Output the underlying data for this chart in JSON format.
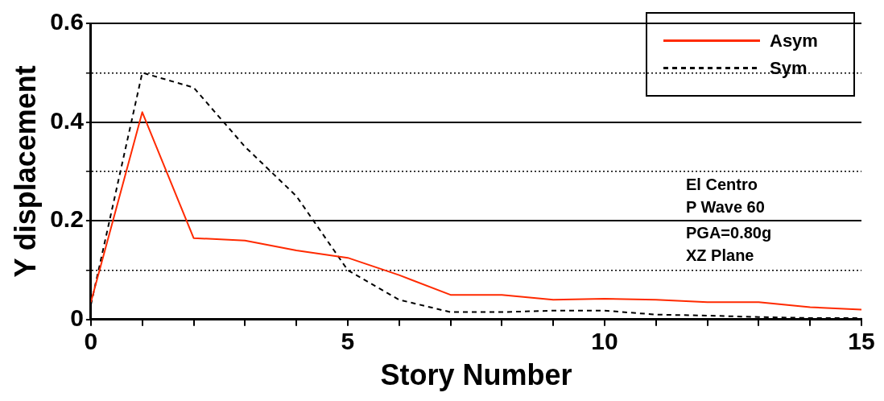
{
  "chart_data": {
    "type": "line",
    "xlabel": "Story Number",
    "ylabel": "Y displacement",
    "x": [
      0,
      1,
      2,
      3,
      4,
      5,
      6,
      7,
      8,
      9,
      10,
      11,
      12,
      13,
      14,
      15
    ],
    "series": [
      {
        "name": "Asym",
        "color": "#ff2a00",
        "line_style": "solid",
        "values": [
          0.035,
          0.42,
          0.165,
          0.16,
          0.14,
          0.125,
          0.09,
          0.05,
          0.05,
          0.04,
          0.042,
          0.04,
          0.035,
          0.035,
          0.025,
          0.02
        ]
      },
      {
        "name": "Sym",
        "color": "#000000",
        "line_style": "dashed",
        "values": [
          0.03,
          0.5,
          0.47,
          0.35,
          0.25,
          0.1,
          0.04,
          0.015,
          0.015,
          0.018,
          0.018,
          0.01,
          0.008,
          0.005,
          0.003,
          0.003
        ]
      }
    ],
    "xlim": [
      0,
      15
    ],
    "ylim": [
      0,
      0.6
    ],
    "xticks": [
      0,
      {
        "value": 1,
        "label": null
      },
      {
        "value": 2,
        "label": null
      },
      {
        "value": 3,
        "label": null
      },
      {
        "value": 4,
        "label": null
      },
      5,
      {
        "value": 6,
        "label": null
      },
      {
        "value": 7,
        "label": null
      },
      {
        "value": 8,
        "label": null
      },
      {
        "value": 9,
        "label": null
      },
      10,
      {
        "value": 11,
        "label": null
      },
      {
        "value": 12,
        "label": null
      },
      {
        "value": 13,
        "label": null
      },
      {
        "value": 14,
        "label": null
      },
      15
    ],
    "yticks": [
      0,
      {
        "value": 0.1,
        "label": null
      },
      0.2,
      {
        "value": 0.3,
        "label": null
      },
      0.4,
      {
        "value": 0.5,
        "label": null
      },
      0.6
    ],
    "grid": "y",
    "legend": "top right",
    "marker": "none",
    "annotations": [
      "El Centro",
      "P Wave 60",
      "PGA=0.80g",
      "XZ Plane"
    ]
  }
}
